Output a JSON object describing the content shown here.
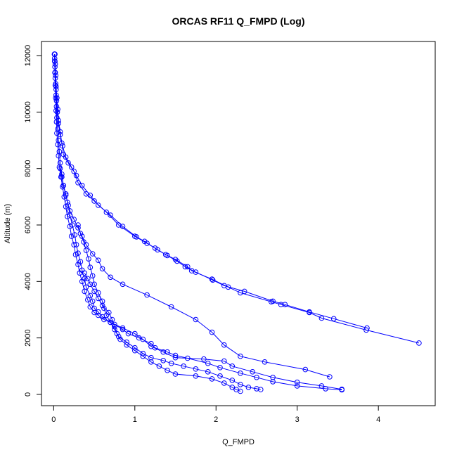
{
  "chart_data": {
    "type": "line",
    "title": "ORCAS RF11 Q_FMPD (Log)",
    "xlabel": "Q_FMPD",
    "ylabel": "Altitude (m)",
    "xlim": [
      -0.15,
      4.7
    ],
    "ylim": [
      -400,
      12500
    ],
    "x_ticks": [
      0,
      1,
      2,
      3,
      4
    ],
    "x_tick_labels": [
      "0",
      "1",
      "2",
      "3",
      "4"
    ],
    "y_ticks": [
      0,
      2000,
      4000,
      6000,
      8000,
      10000,
      12000
    ],
    "y_tick_labels": [
      "0",
      "2000",
      "4000",
      "6000",
      "8000",
      "10000",
      "12000"
    ],
    "grid": false,
    "legend": "none",
    "marker": "open-circle",
    "color": "#0000ff",
    "series": [
      {
        "points": [
          [
            4.5,
            1820
          ],
          [
            3.85,
            2280
          ],
          [
            3.3,
            2700
          ],
          [
            3.15,
            2900
          ],
          [
            2.8,
            3180
          ],
          [
            2.68,
            3280
          ],
          [
            2.3,
            3600
          ],
          [
            2.15,
            3800
          ],
          [
            1.95,
            4080
          ],
          [
            1.7,
            4380
          ],
          [
            1.65,
            4520
          ],
          [
            1.5,
            4780
          ],
          [
            1.38,
            4950
          ],
          [
            1.25,
            5180
          ],
          [
            1.15,
            5350
          ],
          [
            1.0,
            5600
          ],
          [
            0.8,
            6000
          ],
          [
            0.65,
            6450
          ],
          [
            0.5,
            6850
          ],
          [
            0.4,
            7100
          ],
          [
            0.3,
            7500
          ],
          [
            0.25,
            7900
          ],
          [
            0.18,
            8200
          ],
          [
            0.12,
            8500
          ],
          [
            0.1,
            8900
          ],
          [
            0.08,
            9300
          ],
          [
            0.06,
            9700
          ],
          [
            0.05,
            10100
          ],
          [
            0.04,
            10500
          ],
          [
            0.03,
            10900
          ],
          [
            0.025,
            11300
          ],
          [
            0.02,
            11700
          ],
          [
            0.015,
            12050
          ]
        ]
      },
      {
        "points": [
          [
            3.86,
            2350
          ],
          [
            3.45,
            2680
          ],
          [
            3.15,
            2920
          ],
          [
            2.85,
            3180
          ],
          [
            2.7,
            3300
          ],
          [
            2.35,
            3650
          ],
          [
            2.1,
            3850
          ],
          [
            1.96,
            4050
          ],
          [
            1.75,
            4330
          ],
          [
            1.62,
            4520
          ],
          [
            1.52,
            4720
          ],
          [
            1.4,
            4920
          ],
          [
            1.28,
            5120
          ],
          [
            1.12,
            5420
          ],
          [
            1.02,
            5580
          ],
          [
            0.85,
            5950
          ],
          [
            0.7,
            6350
          ],
          [
            0.55,
            6700
          ],
          [
            0.45,
            7050
          ],
          [
            0.35,
            7400
          ],
          [
            0.28,
            7750
          ],
          [
            0.22,
            8050
          ],
          [
            0.15,
            8400
          ],
          [
            0.11,
            8800
          ],
          [
            0.08,
            9200
          ],
          [
            0.06,
            9600
          ],
          [
            0.045,
            10000
          ],
          [
            0.035,
            10400
          ],
          [
            0.03,
            10800
          ],
          [
            0.02,
            11200
          ],
          [
            0.015,
            11600
          ],
          [
            0.012,
            11900
          ]
        ]
      },
      {
        "points": [
          [
            3.55,
            160
          ],
          [
            3.35,
            200
          ],
          [
            3.0,
            300
          ],
          [
            2.7,
            450
          ],
          [
            2.5,
            600
          ],
          [
            2.3,
            750
          ],
          [
            2.05,
            950
          ],
          [
            1.9,
            1100
          ],
          [
            1.65,
            1280
          ],
          [
            1.5,
            1380
          ],
          [
            1.4,
            1500
          ],
          [
            1.25,
            1650
          ],
          [
            1.2,
            1800
          ],
          [
            1.05,
            2000
          ],
          [
            0.92,
            2150
          ],
          [
            0.85,
            2300
          ],
          [
            0.75,
            2480
          ],
          [
            0.62,
            2650
          ],
          [
            0.55,
            2800
          ],
          [
            0.5,
            2900
          ],
          [
            0.45,
            3100
          ],
          [
            0.42,
            3350
          ],
          [
            0.38,
            3650
          ],
          [
            0.35,
            4000
          ],
          [
            0.32,
            4300
          ],
          [
            0.3,
            4600
          ],
          [
            0.27,
            4950
          ],
          [
            0.25,
            5300
          ],
          [
            0.22,
            5600
          ],
          [
            0.2,
            5950
          ],
          [
            0.17,
            6300
          ],
          [
            0.15,
            6650
          ],
          [
            0.13,
            7000
          ],
          [
            0.11,
            7350
          ],
          [
            0.09,
            7700
          ],
          [
            0.07,
            8050
          ],
          [
            0.06,
            8450
          ],
          [
            0.05,
            8850
          ],
          [
            0.04,
            9250
          ],
          [
            0.035,
            9650
          ],
          [
            0.03,
            10050
          ],
          [
            0.025,
            10500
          ],
          [
            0.02,
            10950
          ],
          [
            0.015,
            11400
          ],
          [
            0.012,
            11800
          ],
          [
            0.01,
            12050
          ]
        ]
      },
      {
        "points": [
          [
            3.55,
            180
          ],
          [
            3.3,
            300
          ],
          [
            3.0,
            430
          ],
          [
            2.7,
            600
          ],
          [
            2.45,
            800
          ],
          [
            2.2,
            1000
          ],
          [
            2.1,
            1180
          ],
          [
            1.85,
            1250
          ],
          [
            1.5,
            1300
          ],
          [
            1.35,
            1500
          ],
          [
            1.2,
            1700
          ],
          [
            1.1,
            1950
          ],
          [
            1.0,
            2150
          ],
          [
            0.85,
            2350
          ],
          [
            0.7,
            2550
          ],
          [
            0.6,
            2750
          ],
          [
            0.55,
            2920
          ],
          [
            0.5,
            3050
          ],
          [
            0.48,
            3300
          ],
          [
            0.45,
            3500
          ],
          [
            0.4,
            3800
          ],
          [
            0.38,
            4100
          ],
          [
            0.35,
            4400
          ],
          [
            0.33,
            4700
          ],
          [
            0.3,
            5000
          ],
          [
            0.28,
            5300
          ],
          [
            0.26,
            5650
          ],
          [
            0.23,
            6000
          ],
          [
            0.2,
            6350
          ],
          [
            0.18,
            6700
          ],
          [
            0.15,
            7050
          ],
          [
            0.12,
            7400
          ],
          [
            0.1,
            7800
          ],
          [
            0.08,
            8200
          ],
          [
            0.07,
            8600
          ],
          [
            0.06,
            9000
          ],
          [
            0.05,
            9400
          ],
          [
            0.04,
            9800
          ],
          [
            0.035,
            10200
          ],
          [
            0.03,
            10600
          ],
          [
            0.025,
            11000
          ],
          [
            0.02,
            11400
          ],
          [
            0.015,
            11800
          ],
          [
            0.01,
            12050
          ]
        ]
      },
      {
        "points": [
          [
            3.4,
            620
          ],
          [
            3.1,
            880
          ],
          [
            2.6,
            1150
          ],
          [
            2.3,
            1350
          ],
          [
            2.1,
            1750
          ],
          [
            1.95,
            2200
          ],
          [
            1.75,
            2650
          ],
          [
            1.45,
            3100
          ],
          [
            1.15,
            3520
          ],
          [
            0.85,
            3900
          ],
          [
            0.7,
            4150
          ],
          [
            0.6,
            4450
          ],
          [
            0.55,
            4750
          ],
          [
            0.48,
            4980
          ],
          [
            0.4,
            5300
          ],
          [
            0.35,
            5600
          ],
          [
            0.3,
            5900
          ],
          [
            0.25,
            6200
          ],
          [
            0.2,
            6500
          ],
          [
            0.17,
            6800
          ],
          [
            0.15,
            7100
          ],
          [
            0.12,
            7400
          ],
          [
            0.1,
            7700
          ],
          [
            0.08,
            8000
          ]
        ]
      },
      {
        "points": [
          [
            2.55,
            170
          ],
          [
            2.5,
            200
          ],
          [
            2.4,
            250
          ],
          [
            2.3,
            350
          ],
          [
            2.2,
            500
          ],
          [
            2.05,
            650
          ],
          [
            1.9,
            800
          ],
          [
            1.75,
            900
          ],
          [
            1.6,
            1000
          ],
          [
            1.45,
            1100
          ],
          [
            1.35,
            1200
          ],
          [
            1.2,
            1300
          ],
          [
            1.1,
            1450
          ],
          [
            1.0,
            1650
          ],
          [
            0.9,
            1850
          ],
          [
            0.8,
            2050
          ],
          [
            0.75,
            2300
          ],
          [
            0.7,
            2550
          ],
          [
            0.65,
            2800
          ],
          [
            0.62,
            3050
          ],
          [
            0.6,
            3300
          ],
          [
            0.55,
            3600
          ],
          [
            0.5,
            3900
          ],
          [
            0.48,
            4200
          ],
          [
            0.45,
            4500
          ],
          [
            0.43,
            4800
          ],
          [
            0.4,
            5100
          ],
          [
            0.37,
            5400
          ],
          [
            0.33,
            5700
          ],
          [
            0.3,
            6000
          ]
        ]
      },
      {
        "points": [
          [
            2.3,
            110
          ],
          [
            2.25,
            170
          ],
          [
            2.2,
            250
          ],
          [
            2.1,
            400
          ],
          [
            1.95,
            550
          ],
          [
            1.75,
            650
          ],
          [
            1.5,
            720
          ],
          [
            1.4,
            850
          ],
          [
            1.3,
            1000
          ],
          [
            1.2,
            1150
          ],
          [
            1.1,
            1350
          ],
          [
            1.0,
            1550
          ],
          [
            0.9,
            1750
          ],
          [
            0.82,
            1950
          ],
          [
            0.78,
            2150
          ],
          [
            0.75,
            2400
          ],
          [
            0.72,
            2650
          ],
          [
            0.68,
            2900
          ],
          [
            0.6,
            3150
          ],
          [
            0.55,
            3400
          ],
          [
            0.5,
            3650
          ],
          [
            0.45,
            3900
          ],
          [
            0.42,
            4100
          ],
          [
            0.38,
            4300
          ]
        ]
      }
    ]
  }
}
